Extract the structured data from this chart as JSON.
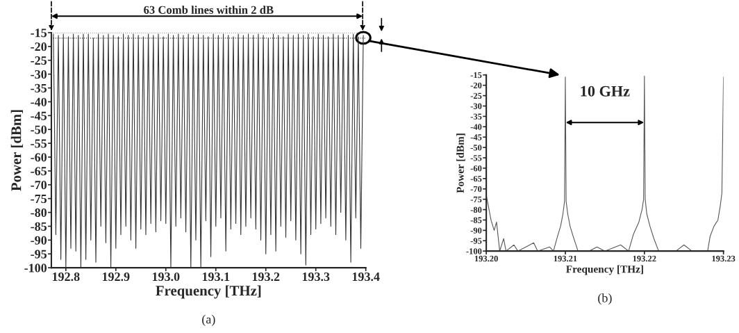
{
  "chart_data": [
    {
      "type": "line",
      "xlabel": "Frequency [THz]",
      "ylabel": "Power [dBm]",
      "xlim": [
        192.771,
        193.4
      ],
      "ylim": [
        -100,
        -15
      ],
      "xticks": [
        192.8,
        192.9,
        {
          "value": 193.0,
          "label": "193.0"
        },
        193.1,
        193.2,
        193.3,
        193.4
      ],
      "yticks": [
        -15,
        -20,
        -25,
        -30,
        -35,
        -40,
        -45,
        -50,
        -55,
        -60,
        -65,
        -70,
        -75,
        -80,
        -85,
        -90,
        -95,
        -100
      ],
      "ref_lines": [
        {
          "axis": "y",
          "value": -15,
          "color": "#333333",
          "line_style": "dotted"
        },
        {
          "axis": "y",
          "value": -17,
          "color": "#333333",
          "line_style": "dotted"
        }
      ],
      "annotations": [
        "63 Comb lines within 2 dB",
        "(a)"
      ],
      "series": [
        {
          "color": "#333333",
          "x": [
            192.775,
            192.78,
            192.785,
            192.79,
            192.795,
            192.8,
            192.805,
            192.81,
            192.815,
            192.82,
            192.825,
            192.83,
            192.835,
            192.84,
            192.845,
            192.85,
            192.855,
            192.86,
            192.865,
            192.87,
            192.875,
            192.88,
            192.885,
            192.89,
            192.895,
            192.9,
            192.905,
            192.91,
            192.915,
            192.92,
            192.925,
            192.93,
            192.935,
            192.94,
            192.945,
            192.95,
            192.955,
            192.96,
            192.965,
            192.97,
            192.975,
            192.98,
            192.985,
            192.99,
            192.995,
            193.0,
            193.005,
            193.01,
            193.015,
            193.02,
            193.025,
            193.03,
            193.035,
            193.04,
            193.045,
            193.05,
            193.055,
            193.06,
            193.065,
            193.07,
            193.075,
            193.08,
            193.085,
            193.09,
            193.095,
            193.1,
            193.105,
            193.11,
            193.115,
            193.12,
            193.125,
            193.13,
            193.135,
            193.14,
            193.145,
            193.15,
            193.155,
            193.16,
            193.165,
            193.17,
            193.175,
            193.18,
            193.185,
            193.19,
            193.195,
            193.2,
            193.205,
            193.21,
            193.215,
            193.22,
            193.225,
            193.23,
            193.235,
            193.24,
            193.245,
            193.25,
            193.255,
            193.26,
            193.265,
            193.27,
            193.275,
            193.28,
            193.285,
            193.29,
            193.295,
            193.3,
            193.305,
            193.31,
            193.315,
            193.32,
            193.325,
            193.33,
            193.335,
            193.34,
            193.345,
            193.35,
            193.355,
            193.36,
            193.365,
            193.37,
            193.375,
            193.38,
            193.385,
            193.39,
            193.395
          ],
          "values": [
            -15.5,
            -88,
            -16,
            -97,
            -15.5,
            -100,
            -16.5,
            -93,
            -15.5,
            -94,
            -16,
            -100,
            -15.5,
            -97,
            -15.5,
            -90,
            -17,
            -98,
            -15.5,
            -85,
            -16,
            -91,
            -15.5,
            -100,
            -16,
            -93,
            -16.5,
            -88,
            -15.5,
            -85,
            -16,
            -90,
            -15.5,
            -93,
            -16,
            -86,
            -16.5,
            -88,
            -15.5,
            -84,
            -16,
            -87,
            -15.5,
            -83,
            -16.5,
            -84,
            -15.5,
            -100,
            -16,
            -85,
            -15.5,
            -82,
            -16,
            -87,
            -15.5,
            -100,
            -16,
            -90,
            -15.5,
            -100,
            -16,
            -83,
            -16.5,
            -96,
            -15.5,
            -85,
            -16,
            -82,
            -15.5,
            -94,
            -16,
            -86,
            -16.5,
            -84,
            -15.5,
            -88,
            -16,
            -85,
            -15.5,
            -82,
            -16,
            -86,
            -15.5,
            -90,
            -16,
            -95,
            -17,
            -88,
            -15.5,
            -94,
            -16,
            -85,
            -16.5,
            -89,
            -15.5,
            -83,
            -16,
            -90,
            -15.5,
            -95,
            -16,
            -99,
            -15.5,
            -88,
            -16.5,
            -86,
            -15.5,
            -84,
            -16,
            -82,
            -16.5,
            -85,
            -15.5,
            -88,
            -16,
            -80,
            -15.5,
            -90,
            -16,
            -98,
            -15.5,
            -82,
            -16.5,
            -93,
            -16
          ]
        }
      ]
    },
    {
      "type": "line",
      "xlabel": "Frequency [THz]",
      "ylabel": "Power [dBm]",
      "xlim": [
        193.2,
        193.23
      ],
      "ylim": [
        -100,
        -15
      ],
      "xticks": [
        {
          "value": 193.2,
          "label": "193.20"
        },
        193.21,
        193.22,
        193.23
      ],
      "yticks": [
        -15,
        -20,
        -25,
        -30,
        -35,
        -40,
        -45,
        -50,
        -55,
        -60,
        -65,
        -70,
        -75,
        -80,
        -85,
        -90,
        -95,
        -100
      ],
      "annotations": [
        "10 GHz",
        "(b)"
      ],
      "series": [
        {
          "color": "#555555",
          "x": [
            193.2,
            193.2006,
            193.201,
            193.2013,
            193.2017,
            193.2022,
            193.2025,
            193.2035,
            193.204,
            193.206,
            193.2065,
            193.208,
            193.2085,
            193.209,
            193.2094,
            193.2097,
            193.2099,
            193.21,
            193.2101,
            193.2103,
            193.2106,
            193.211,
            193.2116,
            193.213,
            193.214,
            193.215,
            193.217,
            193.218,
            193.2186,
            193.2193,
            193.2197,
            193.2199,
            193.22,
            193.2201,
            193.2203,
            193.2207,
            193.2212,
            193.2218,
            193.224,
            193.225,
            193.226,
            193.228,
            193.2283,
            193.2288,
            193.2293,
            193.2296,
            193.2298,
            193.23
          ],
          "values": [
            -73,
            -85,
            -90,
            -86,
            -100,
            -94,
            -100,
            -97,
            -100,
            -96,
            -100,
            -98,
            -100,
            -93,
            -88,
            -82,
            -76,
            -16,
            -76,
            -82,
            -88,
            -93,
            -100,
            -100,
            -98,
            -100,
            -97,
            -100,
            -92,
            -86,
            -80,
            -75,
            -15.5,
            -75,
            -82,
            -88,
            -94,
            -100,
            -100,
            -97,
            -100,
            -100,
            -93,
            -88,
            -85,
            -78,
            -72,
            -16
          ]
        }
      ]
    }
  ]
}
